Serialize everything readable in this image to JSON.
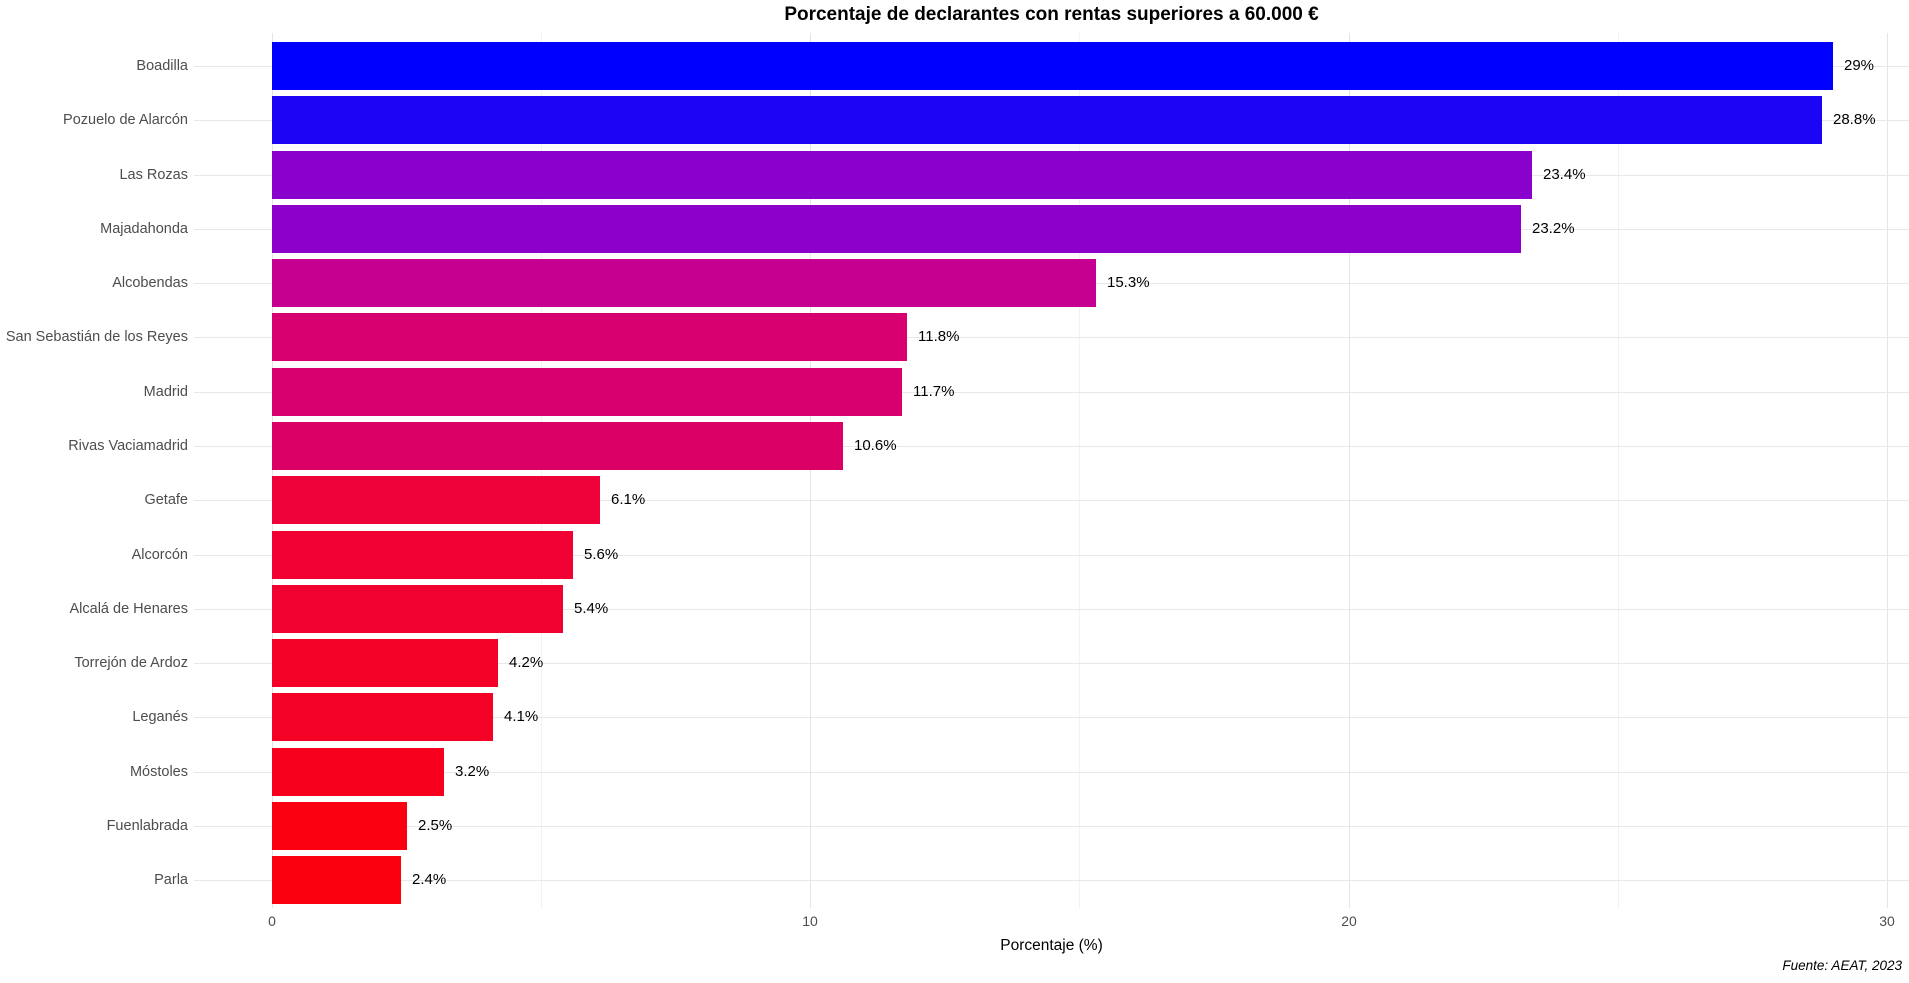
{
  "chart_data": {
    "type": "bar",
    "orientation": "horizontal",
    "title": "Porcentaje de declarantes con rentas superiores a 60.000 €",
    "xlabel": "Porcentaje (%)",
    "ylabel": "",
    "caption": "Fuente: AEAT, 2023",
    "xlim": [
      0,
      30
    ],
    "x_ticks": [
      0,
      10,
      20,
      30
    ],
    "x_minor_ticks": [
      5,
      15,
      25
    ],
    "grid": true,
    "legend": false,
    "gradient": {
      "high_color": "#0000FF",
      "low_color": "#FF0000",
      "mapped_to": "value"
    },
    "bars": [
      {
        "name": "Boadilla",
        "value": 29.0,
        "label": "29%",
        "color": "#0000FF"
      },
      {
        "name": "Pozuelo de Alarcón",
        "value": 28.8,
        "label": "28.8%",
        "color": "#1C04F5"
      },
      {
        "name": "Las Rozas",
        "value": 23.4,
        "label": "23.4%",
        "color": "#8A00CC"
      },
      {
        "name": "Majadahonda",
        "value": 23.2,
        "label": "23.2%",
        "color": "#8D00C9"
      },
      {
        "name": "Alcobendas",
        "value": 15.3,
        "label": "15.3%",
        "color": "#C50090"
      },
      {
        "name": "San Sebastián de los Reyes",
        "value": 11.8,
        "label": "11.8%",
        "color": "#D80070"
      },
      {
        "name": "Madrid",
        "value": 11.7,
        "label": "11.7%",
        "color": "#D8006F"
      },
      {
        "name": "Rivas Vaciamadrid",
        "value": 10.6,
        "label": "10.6%",
        "color": "#DB0066"
      },
      {
        "name": "Getafe",
        "value": 6.1,
        "label": "6.1%",
        "color": "#EE0038"
      },
      {
        "name": "Alcorcón",
        "value": 5.6,
        "label": "5.6%",
        "color": "#F00033"
      },
      {
        "name": "Alcalá de Henares",
        "value": 5.4,
        "label": "5.4%",
        "color": "#F00130"
      },
      {
        "name": "Torrejón de Ardoz",
        "value": 4.2,
        "label": "4.2%",
        "color": "#F40127"
      },
      {
        "name": "Leganés",
        "value": 4.1,
        "label": "4.1%",
        "color": "#F40126"
      },
      {
        "name": "Móstoles",
        "value": 3.2,
        "label": "3.2%",
        "color": "#F7001D"
      },
      {
        "name": "Fuenlabrada",
        "value": 2.5,
        "label": "2.5%",
        "color": "#FB0011"
      },
      {
        "name": "Parla",
        "value": 2.4,
        "label": "2.4%",
        "color": "#FB000F"
      }
    ]
  }
}
